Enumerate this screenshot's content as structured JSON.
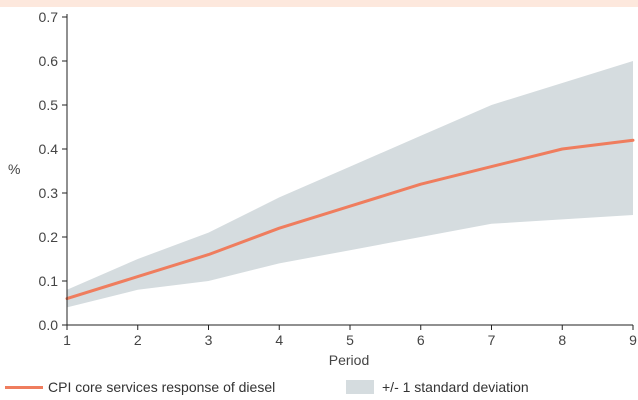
{
  "colors": {
    "line": "#ef7d5e",
    "band": "#d5dcdf",
    "axis": "#222222",
    "top_band": "#fde8dd"
  },
  "chart_data": {
    "type": "line",
    "title": "",
    "xlabel": "Period",
    "ylabel": "%",
    "x": [
      1,
      2,
      3,
      4,
      5,
      6,
      7,
      8,
      9
    ],
    "xlim": [
      1,
      9
    ],
    "ylim": [
      0,
      0.7
    ],
    "yticks": [
      0.0,
      0.1,
      0.2,
      0.3,
      0.4,
      0.5,
      0.6,
      0.7
    ],
    "ytick_labels": [
      "0.0",
      "0.1",
      "0.2",
      "0.3",
      "0.4",
      "0.5",
      "0.6",
      "0.7"
    ],
    "xtick_labels": [
      "1",
      "2",
      "3",
      "4",
      "5",
      "6",
      "7",
      "8",
      "9"
    ],
    "grid": false,
    "legend_position": "bottom",
    "series": [
      {
        "name": "CPI core services response of diesel",
        "kind": "line",
        "values": [
          0.06,
          0.11,
          0.16,
          0.22,
          0.27,
          0.32,
          0.36,
          0.4,
          0.42
        ]
      },
      {
        "name": "+/- 1 standard deviation",
        "kind": "band",
        "lower": [
          0.04,
          0.08,
          0.1,
          0.14,
          0.17,
          0.2,
          0.23,
          0.24,
          0.25
        ],
        "upper": [
          0.08,
          0.15,
          0.21,
          0.29,
          0.36,
          0.43,
          0.5,
          0.55,
          0.6
        ]
      }
    ]
  }
}
